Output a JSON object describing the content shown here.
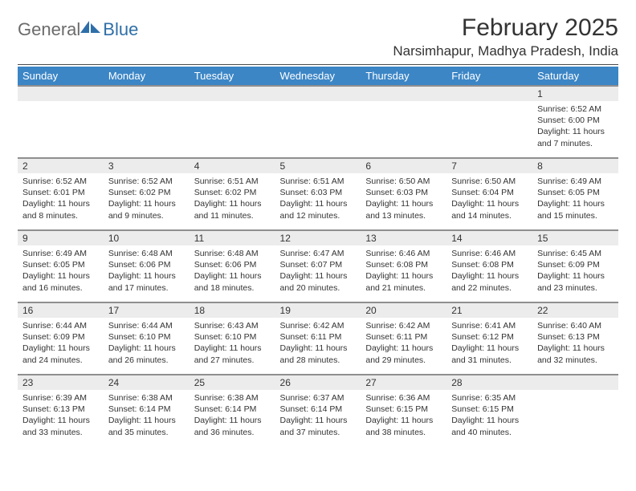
{
  "logo": {
    "text_general": "General",
    "text_blue": "Blue",
    "icon_color": "#2f6fa8"
  },
  "header": {
    "month_title": "February 2025",
    "location": "Narsimhapur, Madhya Pradesh, India"
  },
  "colors": {
    "header_bg": "#3c86c6",
    "header_text": "#ffffff",
    "daynum_bg": "#ececec",
    "daynum_border": "#8f8f8f",
    "body_text": "#333333",
    "hr": "#4a4a4a"
  },
  "calendar": {
    "day_headers": [
      "Sunday",
      "Monday",
      "Tuesday",
      "Wednesday",
      "Thursday",
      "Friday",
      "Saturday"
    ],
    "weeks": [
      [
        null,
        null,
        null,
        null,
        null,
        null,
        {
          "n": "1",
          "sunrise": "Sunrise: 6:52 AM",
          "sunset": "Sunset: 6:00 PM",
          "daylight": "Daylight: 11 hours and 7 minutes."
        }
      ],
      [
        {
          "n": "2",
          "sunrise": "Sunrise: 6:52 AM",
          "sunset": "Sunset: 6:01 PM",
          "daylight": "Daylight: 11 hours and 8 minutes."
        },
        {
          "n": "3",
          "sunrise": "Sunrise: 6:52 AM",
          "sunset": "Sunset: 6:02 PM",
          "daylight": "Daylight: 11 hours and 9 minutes."
        },
        {
          "n": "4",
          "sunrise": "Sunrise: 6:51 AM",
          "sunset": "Sunset: 6:02 PM",
          "daylight": "Daylight: 11 hours and 11 minutes."
        },
        {
          "n": "5",
          "sunrise": "Sunrise: 6:51 AM",
          "sunset": "Sunset: 6:03 PM",
          "daylight": "Daylight: 11 hours and 12 minutes."
        },
        {
          "n": "6",
          "sunrise": "Sunrise: 6:50 AM",
          "sunset": "Sunset: 6:03 PM",
          "daylight": "Daylight: 11 hours and 13 minutes."
        },
        {
          "n": "7",
          "sunrise": "Sunrise: 6:50 AM",
          "sunset": "Sunset: 6:04 PM",
          "daylight": "Daylight: 11 hours and 14 minutes."
        },
        {
          "n": "8",
          "sunrise": "Sunrise: 6:49 AM",
          "sunset": "Sunset: 6:05 PM",
          "daylight": "Daylight: 11 hours and 15 minutes."
        }
      ],
      [
        {
          "n": "9",
          "sunrise": "Sunrise: 6:49 AM",
          "sunset": "Sunset: 6:05 PM",
          "daylight": "Daylight: 11 hours and 16 minutes."
        },
        {
          "n": "10",
          "sunrise": "Sunrise: 6:48 AM",
          "sunset": "Sunset: 6:06 PM",
          "daylight": "Daylight: 11 hours and 17 minutes."
        },
        {
          "n": "11",
          "sunrise": "Sunrise: 6:48 AM",
          "sunset": "Sunset: 6:06 PM",
          "daylight": "Daylight: 11 hours and 18 minutes."
        },
        {
          "n": "12",
          "sunrise": "Sunrise: 6:47 AM",
          "sunset": "Sunset: 6:07 PM",
          "daylight": "Daylight: 11 hours and 20 minutes."
        },
        {
          "n": "13",
          "sunrise": "Sunrise: 6:46 AM",
          "sunset": "Sunset: 6:08 PM",
          "daylight": "Daylight: 11 hours and 21 minutes."
        },
        {
          "n": "14",
          "sunrise": "Sunrise: 6:46 AM",
          "sunset": "Sunset: 6:08 PM",
          "daylight": "Daylight: 11 hours and 22 minutes."
        },
        {
          "n": "15",
          "sunrise": "Sunrise: 6:45 AM",
          "sunset": "Sunset: 6:09 PM",
          "daylight": "Daylight: 11 hours and 23 minutes."
        }
      ],
      [
        {
          "n": "16",
          "sunrise": "Sunrise: 6:44 AM",
          "sunset": "Sunset: 6:09 PM",
          "daylight": "Daylight: 11 hours and 24 minutes."
        },
        {
          "n": "17",
          "sunrise": "Sunrise: 6:44 AM",
          "sunset": "Sunset: 6:10 PM",
          "daylight": "Daylight: 11 hours and 26 minutes."
        },
        {
          "n": "18",
          "sunrise": "Sunrise: 6:43 AM",
          "sunset": "Sunset: 6:10 PM",
          "daylight": "Daylight: 11 hours and 27 minutes."
        },
        {
          "n": "19",
          "sunrise": "Sunrise: 6:42 AM",
          "sunset": "Sunset: 6:11 PM",
          "daylight": "Daylight: 11 hours and 28 minutes."
        },
        {
          "n": "20",
          "sunrise": "Sunrise: 6:42 AM",
          "sunset": "Sunset: 6:11 PM",
          "daylight": "Daylight: 11 hours and 29 minutes."
        },
        {
          "n": "21",
          "sunrise": "Sunrise: 6:41 AM",
          "sunset": "Sunset: 6:12 PM",
          "daylight": "Daylight: 11 hours and 31 minutes."
        },
        {
          "n": "22",
          "sunrise": "Sunrise: 6:40 AM",
          "sunset": "Sunset: 6:13 PM",
          "daylight": "Daylight: 11 hours and 32 minutes."
        }
      ],
      [
        {
          "n": "23",
          "sunrise": "Sunrise: 6:39 AM",
          "sunset": "Sunset: 6:13 PM",
          "daylight": "Daylight: 11 hours and 33 minutes."
        },
        {
          "n": "24",
          "sunrise": "Sunrise: 6:38 AM",
          "sunset": "Sunset: 6:14 PM",
          "daylight": "Daylight: 11 hours and 35 minutes."
        },
        {
          "n": "25",
          "sunrise": "Sunrise: 6:38 AM",
          "sunset": "Sunset: 6:14 PM",
          "daylight": "Daylight: 11 hours and 36 minutes."
        },
        {
          "n": "26",
          "sunrise": "Sunrise: 6:37 AM",
          "sunset": "Sunset: 6:14 PM",
          "daylight": "Daylight: 11 hours and 37 minutes."
        },
        {
          "n": "27",
          "sunrise": "Sunrise: 6:36 AM",
          "sunset": "Sunset: 6:15 PM",
          "daylight": "Daylight: 11 hours and 38 minutes."
        },
        {
          "n": "28",
          "sunrise": "Sunrise: 6:35 AM",
          "sunset": "Sunset: 6:15 PM",
          "daylight": "Daylight: 11 hours and 40 minutes."
        },
        null
      ]
    ]
  }
}
